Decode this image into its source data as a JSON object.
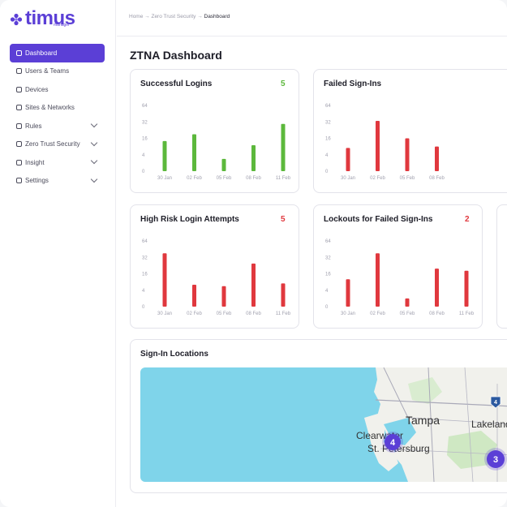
{
  "app": {
    "logo_text": "timus",
    "logo_sub": "manager",
    "brand_color": "#5b3fd6"
  },
  "sidebar": {
    "items": [
      {
        "label": "Dashboard",
        "icon": "dashboard-icon",
        "active": true,
        "has_chevron": false
      },
      {
        "label": "Users & Teams",
        "icon": "users-icon",
        "active": false,
        "has_chevron": false
      },
      {
        "label": "Devices",
        "icon": "devices-icon",
        "active": false,
        "has_chevron": false
      },
      {
        "label": "Sites & Networks",
        "icon": "sites-icon",
        "active": false,
        "has_chevron": false
      },
      {
        "label": "Rules",
        "icon": "rules-icon",
        "active": false,
        "has_chevron": true
      },
      {
        "label": "Zero Trust Security",
        "icon": "shield-icon",
        "active": false,
        "has_chevron": true
      },
      {
        "label": "Insight",
        "icon": "insight-icon",
        "active": false,
        "has_chevron": true
      },
      {
        "label": "Settings",
        "icon": "gear-icon",
        "active": false,
        "has_chevron": true
      }
    ]
  },
  "breadcrumb": {
    "home": "Home",
    "section": "Zero Trust Security",
    "current": "Dashboard",
    "separator": "→"
  },
  "page": {
    "title": "ZTNA Dashboard"
  },
  "colors": {
    "green": "#5cb83c",
    "red": "#e0383e"
  },
  "chart_data": [
    {
      "type": "bar",
      "title": "Successful Logins",
      "count": "5",
      "color": "green",
      "ylim": [
        0,
        64
      ],
      "yticks": [
        "64",
        "32",
        "16",
        "4",
        "0"
      ],
      "categories": [
        "30 Jan",
        "02 Feb",
        "05 Feb",
        "08 Feb",
        "11 Feb"
      ],
      "values": [
        14,
        20,
        3,
        11,
        30
      ]
    },
    {
      "type": "bar",
      "title": "Failed Sign-Ins",
      "count": "",
      "color": "red",
      "ylim": [
        0,
        64
      ],
      "yticks": [
        "64",
        "32",
        "16",
        "4",
        "0"
      ],
      "categories": [
        "30 Jan",
        "02 Feb",
        "05 Feb",
        "08 Feb"
      ],
      "values": [
        9,
        34,
        16,
        10
      ]
    },
    {
      "type": "bar",
      "title": "High Risk Login Attempts",
      "count": "5",
      "color": "red",
      "ylim": [
        0,
        64
      ],
      "yticks": [
        "64",
        "32",
        "16",
        "4",
        "0"
      ],
      "categories": [
        "30 Jan",
        "02 Feb",
        "05 Feb",
        "08 Feb",
        "11 Feb"
      ],
      "values": [
        40,
        8,
        7,
        26,
        9
      ]
    },
    {
      "type": "bar",
      "title": "Lockouts for Failed Sign-Ins",
      "count": "2",
      "color": "red",
      "ylim": [
        0,
        64
      ],
      "yticks": [
        "64",
        "32",
        "16",
        "4",
        "0"
      ],
      "categories": [
        "30 Jan",
        "02 Feb",
        "05 Feb",
        "08 Feb",
        "11 Feb"
      ],
      "values": [
        12,
        40,
        2,
        21,
        19
      ]
    }
  ],
  "map": {
    "title": "Sign-In Locations",
    "cities": [
      "Tampa",
      "Lakeland",
      "Clearwater",
      "St. Petersburg"
    ],
    "highway": "4",
    "clusters": [
      "4",
      "3"
    ],
    "water_color": "#7fd4ea",
    "land_color": "#f1f1ec"
  }
}
